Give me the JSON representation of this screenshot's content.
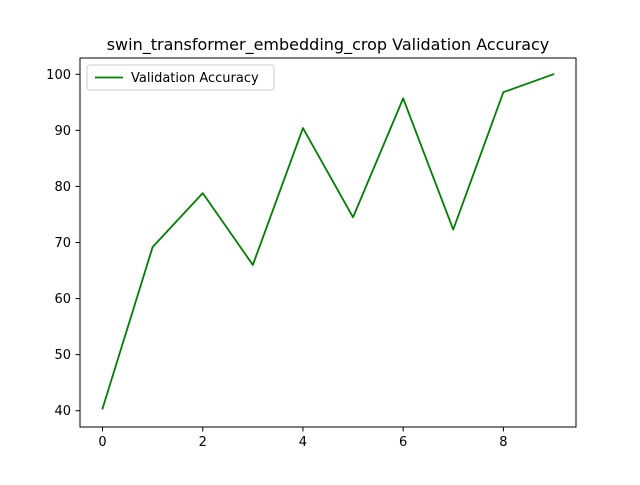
{
  "chart_data": {
    "type": "line",
    "title": "swin_transformer_embedding_crop Validation Accuracy",
    "xlabel": "",
    "ylabel": "",
    "x": [
      0,
      1,
      2,
      3,
      4,
      5,
      6,
      7,
      8,
      9
    ],
    "series": [
      {
        "name": "Validation Accuracy",
        "color": "#008000",
        "values": [
          40.4,
          69.2,
          78.8,
          66.0,
          90.4,
          74.5,
          95.7,
          72.3,
          96.8,
          100.0
        ]
      }
    ],
    "xlim": [
      -0.45,
      9.45
    ],
    "ylim": [
      37.1,
      102.9
    ],
    "xticks": [
      0,
      2,
      4,
      6,
      8
    ],
    "xtick_labels": [
      "0",
      "2",
      "4",
      "6",
      "8"
    ],
    "yticks": [
      40,
      50,
      60,
      70,
      80,
      90,
      100
    ],
    "ytick_labels": [
      "40",
      "50",
      "60",
      "70",
      "80",
      "90",
      "100"
    ],
    "grid": false,
    "legend_position": "upper-left"
  }
}
